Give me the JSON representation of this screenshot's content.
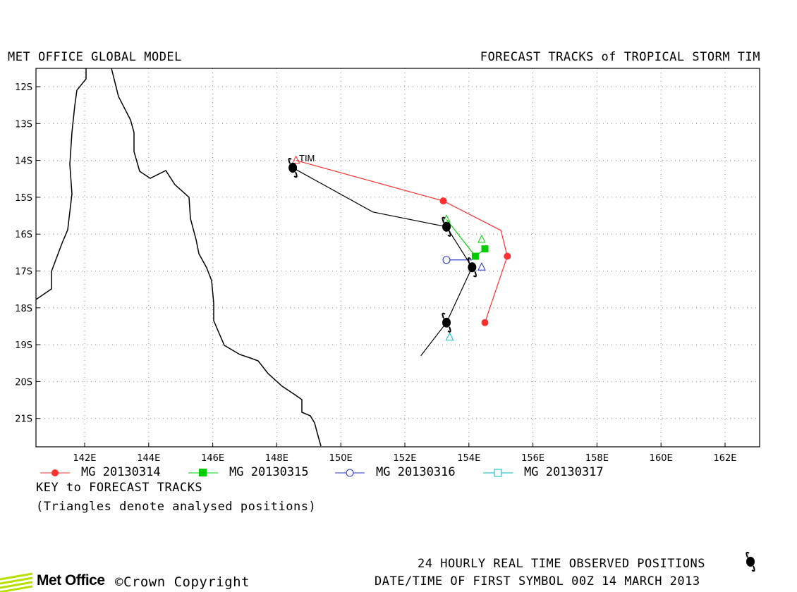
{
  "header": {
    "left_title": "MET OFFICE GLOBAL MODEL",
    "right_title": "FORECAST TRACKS of TROPICAL STORM TIM"
  },
  "map": {
    "lat_labels": [
      "12S",
      "13S",
      "14S",
      "15S",
      "16S",
      "17S",
      "18S",
      "19S",
      "20S",
      "21S"
    ],
    "lon_labels": [
      "142E",
      "144E",
      "146E",
      "148E",
      "150E",
      "152E",
      "154E",
      "156E",
      "158E",
      "160E",
      "162E"
    ],
    "storm_label": "TIM",
    "coastline_color": "#000000",
    "frame_color": "#000000"
  },
  "tracks": [
    {
      "name": "MG 20130314",
      "color": "#ff3030",
      "marker": "filled-circle",
      "points": [
        [
          148.6,
          -14.0
        ],
        [
          153.2,
          -15.1
        ],
        [
          155.0,
          -15.9
        ],
        [
          155.2,
          -16.6
        ],
        [
          154.5,
          -18.4
        ]
      ],
      "markers": [
        [
          153.2,
          -15.1
        ],
        [
          155.2,
          -16.6
        ],
        [
          154.5,
          -18.4
        ]
      ]
    },
    {
      "name": "MG 20130315",
      "color": "#00cc00",
      "marker": "filled-square",
      "points": [
        [
          153.3,
          -15.6
        ],
        [
          154.2,
          -16.6
        ],
        [
          154.5,
          -16.4
        ]
      ],
      "markers": [
        [
          154.2,
          -16.6
        ],
        [
          154.5,
          -16.4
        ]
      ]
    },
    {
      "name": "MG 20130316",
      "color": "#2030c0",
      "marker": "open-circle",
      "points": [
        [
          153.3,
          -16.7
        ],
        [
          154.1,
          -16.7
        ]
      ],
      "markers": [
        [
          153.3,
          -16.7
        ]
      ]
    },
    {
      "name": "MG 20130317",
      "color": "#00bbbb",
      "marker": "open-square",
      "points": [],
      "markers": []
    }
  ],
  "observed_track": {
    "color": "#000000",
    "points": [
      [
        148.5,
        -14.2
      ],
      [
        151.0,
        -15.4
      ],
      [
        153.3,
        -15.8
      ],
      [
        154.1,
        -16.9
      ],
      [
        153.3,
        -18.4
      ],
      [
        152.5,
        -19.3
      ]
    ],
    "symbols": [
      [
        148.5,
        -14.2
      ],
      [
        153.3,
        -15.8
      ],
      [
        154.1,
        -16.9
      ],
      [
        153.3,
        -18.4
      ]
    ]
  },
  "legend": {
    "key_title": "KEY to FORECAST TRACKS",
    "key_note": "(Triangles denote analysed positions)"
  },
  "footer": {
    "observed_text": "24 HOURLY REAL TIME OBSERVED POSITIONS",
    "datetime_text": "DATE/TIME OF FIRST SYMBOL 00Z 14 MARCH 2013",
    "logo_text": "Met Office",
    "copyright": "©Crown Copyright",
    "logo_color": "#b7e000"
  }
}
